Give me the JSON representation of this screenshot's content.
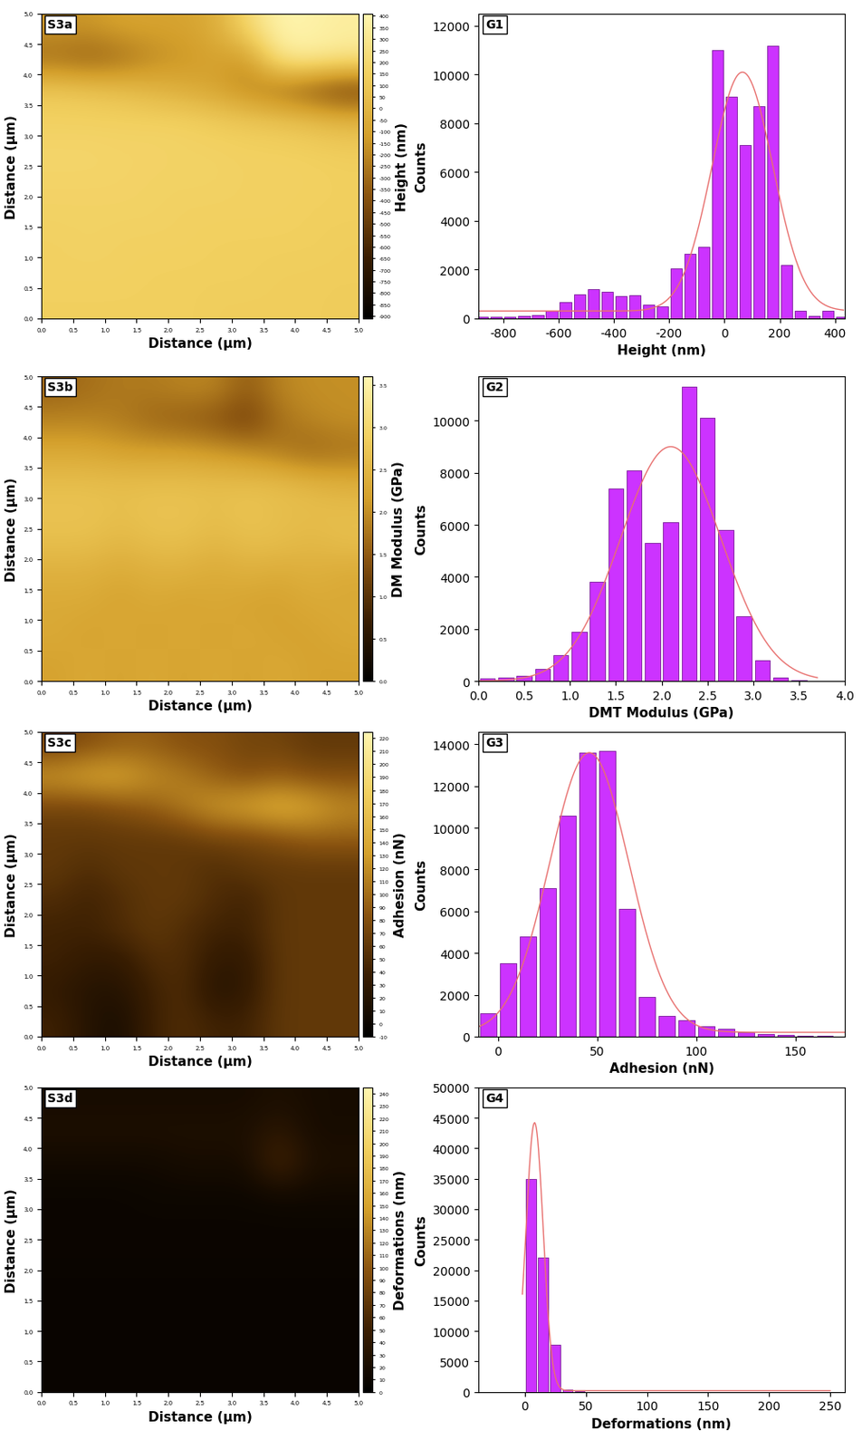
{
  "chart_data": [
    {
      "type": "heatmap",
      "title": "S3a",
      "xlabel": "Distance (µm)",
      "ylabel": "Distance (µm)",
      "xlim": [
        0.0,
        5.0
      ],
      "ylim": [
        0.0,
        5.0
      ],
      "xticks": [
        0.0,
        0.5,
        1.0,
        1.5,
        2.0,
        2.5,
        3.0,
        3.5,
        4.0,
        4.5,
        5.0
      ],
      "yticks": [
        0.0,
        0.5,
        1.0,
        1.5,
        2.0,
        2.5,
        3.0,
        3.5,
        4.0,
        4.5,
        5.0
      ],
      "cells": [
        [
          -150,
          -150,
          -100,
          -100,
          -100,
          -50,
          200,
          400,
          380,
          350
        ],
        [
          -300,
          -350,
          -300,
          -200,
          -150,
          -100,
          -150,
          300,
          350,
          300
        ],
        [
          100,
          80,
          50,
          0,
          -50,
          -100,
          -200,
          -300,
          -400,
          -500
        ],
        [
          150,
          150,
          150,
          150,
          150,
          120,
          100,
          80,
          50,
          0
        ],
        [
          180,
          180,
          170,
          170,
          160,
          160,
          150,
          150,
          140,
          130
        ],
        [
          170,
          170,
          170,
          160,
          160,
          160,
          150,
          150,
          150,
          140
        ],
        [
          160,
          160,
          160,
          160,
          150,
          150,
          150,
          150,
          140,
          140
        ],
        [
          150,
          160,
          150,
          150,
          150,
          140,
          140,
          140,
          140,
          130
        ],
        [
          150,
          150,
          150,
          140,
          140,
          140,
          140,
          130,
          130,
          130
        ],
        [
          140,
          140,
          140,
          140,
          140,
          130,
          130,
          130,
          130,
          120
        ]
      ],
      "colorbar": {
        "label": "Height (nm)",
        "range": [
          -910,
          410
        ],
        "ticks": [
          400,
          350,
          300,
          250,
          200,
          150,
          100,
          50,
          0,
          -50,
          -100,
          -150,
          -200,
          -250,
          -300,
          -350,
          -400,
          -450,
          -500,
          -550,
          -600,
          -650,
          -700,
          -750,
          -800,
          -850,
          -900
        ]
      }
    },
    {
      "type": "histogram",
      "title": "G1",
      "xlabel": "Height (nm)",
      "ylabel": "Counts",
      "bins": [
        -900,
        -850,
        -800,
        -750,
        -700,
        -650,
        -600,
        -550,
        -500,
        -450,
        -400,
        -350,
        -300,
        -250,
        -200,
        -150,
        -100,
        -50,
        0,
        50,
        100,
        150,
        200,
        250,
        300,
        350,
        400,
        450
      ],
      "counts": [
        50,
        60,
        80,
        100,
        150,
        300,
        650,
        1000,
        1200,
        1100,
        900,
        950,
        550,
        500,
        2050,
        2650,
        2950,
        11000,
        9100,
        7100,
        8700,
        11200,
        2200,
        300,
        100,
        300,
        50
      ],
      "color": "#cc33ff",
      "fit": {
        "color": "#e8706f",
        "center": 65,
        "peak": 9800,
        "sigma": 110,
        "baseline": 300,
        "x_range": [
          -890,
          430
        ]
      },
      "xlim": [
        -890,
        435
      ],
      "ylim": [
        0,
        12500
      ],
      "xticks": [
        -800,
        -600,
        -400,
        -200,
        0,
        200,
        400
      ],
      "yticks": [
        0,
        2000,
        4000,
        6000,
        8000,
        10000,
        12000
      ]
    },
    {
      "type": "heatmap",
      "title": "S3b",
      "xlabel": "Distance (µm)",
      "ylabel": "Distance (µm)",
      "xlim": [
        0.0,
        5.0
      ],
      "ylim": [
        0.0,
        5.0
      ],
      "xticks": [
        0.0,
        0.5,
        1.0,
        1.5,
        2.0,
        2.5,
        3.0,
        3.5,
        4.0,
        4.5,
        5.0
      ],
      "yticks": [
        0.0,
        0.5,
        1.0,
        1.5,
        2.0,
        2.5,
        3.0,
        3.5,
        4.0,
        4.5,
        5.0
      ],
      "cells": [
        [
          1.6,
          1.7,
          1.8,
          1.8,
          1.9,
          1.9,
          1.5,
          1.9,
          2.0,
          2.0
        ],
        [
          1.9,
          1.9,
          1.8,
          1.6,
          1.5,
          1.4,
          1.2,
          1.7,
          1.9,
          2.0
        ],
        [
          2.3,
          2.3,
          2.2,
          2.2,
          2.2,
          2.1,
          2.0,
          1.8,
          1.6,
          1.7
        ],
        [
          2.6,
          2.6,
          2.6,
          2.6,
          2.6,
          2.6,
          2.6,
          2.6,
          2.5,
          2.4
        ],
        [
          2.7,
          2.7,
          2.6,
          2.7,
          2.7,
          2.6,
          2.7,
          2.6,
          2.6,
          2.6
        ],
        [
          2.6,
          2.6,
          2.5,
          2.6,
          2.6,
          2.5,
          2.6,
          2.6,
          2.5,
          2.6
        ],
        [
          2.4,
          2.4,
          2.3,
          2.4,
          2.4,
          2.3,
          2.4,
          2.3,
          2.4,
          2.3
        ],
        [
          2.3,
          2.3,
          2.2,
          2.3,
          2.2,
          2.3,
          2.2,
          2.2,
          2.3,
          2.3
        ],
        [
          2.3,
          2.2,
          2.3,
          2.2,
          2.3,
          2.2,
          2.3,
          2.2,
          2.2,
          2.3
        ],
        [
          2.2,
          2.3,
          2.2,
          2.3,
          2.2,
          2.3,
          2.2,
          2.3,
          2.2,
          2.2
        ]
      ],
      "colorbar": {
        "label": "DM Modulus (GPa)",
        "range": [
          0.0,
          3.6
        ],
        "ticks": [
          3.5,
          3.0,
          2.5,
          2.0,
          1.5,
          1.0,
          0.5,
          0.0
        ]
      }
    },
    {
      "type": "histogram",
      "title": "G2",
      "xlabel": "DMT Modulus (GPa)",
      "ylabel": "Counts",
      "bins": [
        0.0,
        0.2,
        0.4,
        0.6,
        0.8,
        1.0,
        1.2,
        1.4,
        1.6,
        1.8,
        2.0,
        2.2,
        2.4,
        2.6,
        2.8,
        3.0,
        3.2,
        3.4,
        3.6
      ],
      "counts": [
        100,
        150,
        200,
        450,
        1000,
        1900,
        3800,
        7400,
        8100,
        5300,
        6100,
        11300,
        10100,
        5800,
        2500,
        800,
        150,
        50
      ],
      "color": "#cc33ff",
      "fit": {
        "color": "#e8706f",
        "center": 2.1,
        "peak": 9000,
        "sigma": 0.55,
        "baseline": 0,
        "x_range": [
          0.0,
          3.7
        ]
      },
      "xlim": [
        0.0,
        4.0
      ],
      "ylim": [
        0,
        11700
      ],
      "xticks": [
        0.0,
        0.5,
        1.0,
        1.5,
        2.0,
        2.5,
        3.0,
        3.5,
        4.0
      ],
      "yticks": [
        0,
        2000,
        4000,
        6000,
        8000,
        10000
      ]
    },
    {
      "type": "heatmap",
      "title": "S3c",
      "xlabel": "Distance (µm)",
      "ylabel": "Distance (µm)",
      "xlim": [
        0.0,
        5.0
      ],
      "ylim": [
        0.0,
        5.0
      ],
      "xticks": [
        0.0,
        0.5,
        1.0,
        1.5,
        2.0,
        2.5,
        3.0,
        3.5,
        4.0,
        4.5,
        5.0
      ],
      "yticks": [
        0.0,
        0.5,
        1.0,
        1.5,
        2.0,
        2.5,
        3.0,
        3.5,
        4.0,
        4.5,
        5.0
      ],
      "cells": [
        [
          70,
          80,
          90,
          90,
          80,
          80,
          70,
          70,
          60,
          60
        ],
        [
          130,
          140,
          140,
          120,
          110,
          90,
          80,
          90,
          80,
          80
        ],
        [
          70,
          70,
          80,
          90,
          110,
          130,
          140,
          150,
          140,
          120
        ],
        [
          60,
          60,
          60,
          60,
          60,
          70,
          70,
          80,
          90,
          90
        ],
        [
          60,
          50,
          60,
          60,
          60,
          50,
          60,
          60,
          60,
          60
        ],
        [
          50,
          40,
          50,
          60,
          60,
          50,
          40,
          60,
          60,
          60
        ],
        [
          40,
          40,
          50,
          60,
          50,
          40,
          40,
          60,
          60,
          60
        ],
        [
          40,
          30,
          30,
          50,
          50,
          30,
          30,
          60,
          60,
          60
        ],
        [
          30,
          20,
          20,
          40,
          50,
          20,
          30,
          60,
          60,
          60
        ],
        [
          40,
          20,
          10,
          40,
          50,
          40,
          40,
          60,
          60,
          60
        ]
      ],
      "colorbar": {
        "label": "Adhesion (nN)",
        "range": [
          -10,
          225
        ],
        "ticks": [
          220,
          210,
          200,
          190,
          180,
          170,
          160,
          150,
          140,
          130,
          120,
          110,
          100,
          90,
          80,
          70,
          60,
          50,
          40,
          30,
          20,
          10,
          0,
          -10
        ]
      }
    },
    {
      "type": "histogram",
      "title": "G3",
      "xlabel": "Adhesion (nN)",
      "ylabel": "Counts",
      "bins": [
        -10,
        0,
        10,
        20,
        30,
        40,
        50,
        60,
        70,
        80,
        90,
        100,
        110,
        120,
        130,
        140,
        150,
        160,
        170
      ],
      "counts": [
        1100,
        3500,
        4800,
        7100,
        10600,
        13600,
        13700,
        6100,
        1900,
        1000,
        800,
        500,
        350,
        200,
        100,
        80,
        50,
        30
      ],
      "color": "#cc33ff",
      "fit": {
        "color": "#e8706f",
        "center": 46,
        "peak": 13400,
        "sigma": 20,
        "baseline": 200,
        "x_range": [
          -10,
          175
        ]
      },
      "xlim": [
        -10,
        175
      ],
      "ylim": [
        0,
        14600
      ],
      "xticks": [
        0,
        50,
        100,
        150
      ],
      "yticks": [
        0,
        2000,
        4000,
        6000,
        8000,
        10000,
        12000,
        14000
      ]
    },
    {
      "type": "heatmap",
      "title": "S3d",
      "xlabel": "Distance (µm)",
      "ylabel": "Distance (µm)",
      "xlim": [
        0.0,
        5.0
      ],
      "ylim": [
        0.0,
        5.0
      ],
      "xticks": [
        0.0,
        0.5,
        1.0,
        1.5,
        2.0,
        2.5,
        3.0,
        3.5,
        4.0,
        4.5,
        5.0
      ],
      "yticks": [
        0.0,
        0.5,
        1.0,
        1.5,
        2.0,
        2.5,
        3.0,
        3.5,
        4.0,
        4.5,
        5.0
      ],
      "cells": [
        [
          20,
          20,
          20,
          20,
          20,
          20,
          20,
          25,
          20,
          20
        ],
        [
          25,
          25,
          25,
          25,
          25,
          25,
          25,
          40,
          20,
          20
        ],
        [
          15,
          15,
          15,
          15,
          20,
          20,
          20,
          60,
          25,
          25
        ],
        [
          10,
          10,
          10,
          12,
          12,
          12,
          12,
          15,
          15,
          15
        ],
        [
          10,
          10,
          10,
          10,
          10,
          10,
          10,
          10,
          10,
          10
        ],
        [
          10,
          10,
          10,
          10,
          10,
          10,
          10,
          10,
          10,
          10
        ],
        [
          8,
          8,
          8,
          8,
          8,
          8,
          8,
          8,
          8,
          8
        ],
        [
          8,
          8,
          8,
          8,
          8,
          8,
          8,
          8,
          8,
          8
        ],
        [
          8,
          8,
          8,
          8,
          8,
          8,
          8,
          8,
          8,
          8
        ],
        [
          8,
          8,
          8,
          8,
          8,
          8,
          8,
          8,
          8,
          8
        ]
      ],
      "colorbar": {
        "label": "Deformations (nm)",
        "range": [
          0,
          245
        ],
        "ticks": [
          240,
          230,
          220,
          210,
          200,
          190,
          180,
          170,
          160,
          150,
          140,
          130,
          120,
          110,
          100,
          90,
          80,
          70,
          60,
          50,
          40,
          30,
          20,
          10,
          0
        ]
      }
    },
    {
      "type": "histogram",
      "title": "G4",
      "xlabel": "Deformations (nm)",
      "ylabel": "Counts",
      "bins": [
        0,
        10,
        20,
        30,
        40,
        50
      ],
      "counts": [
        35000,
        22000,
        7800,
        400,
        50
      ],
      "color": "#cc33ff",
      "fit": {
        "color": "#e8706f",
        "center": 8,
        "peak": 44000,
        "sigma": 7,
        "baseline": 200,
        "x_range": [
          -2,
          250
        ]
      },
      "xlim": [
        -38,
        262
      ],
      "ylim": [
        0,
        50000
      ],
      "xticks": [
        0,
        50,
        100,
        150,
        200,
        250
      ],
      "yticks": [
        0,
        5000,
        10000,
        15000,
        20000,
        25000,
        30000,
        35000,
        40000,
        45000,
        50000
      ]
    }
  ]
}
